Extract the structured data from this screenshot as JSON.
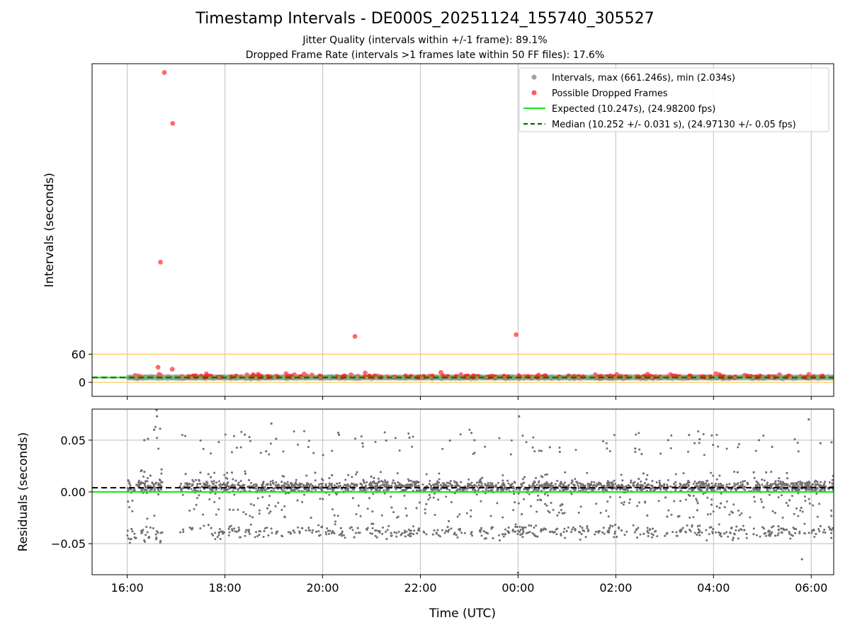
{
  "figure": {
    "title": "Timestamp Intervals - DE000S_20251124_155740_305527",
    "subtitle_1": "Jitter Quality (intervals within +/-1 frame): 89.1%",
    "subtitle_2": "Dropped Frame Rate (intervals >1 frames late within 50 FF files): 17.6%"
  },
  "chart_data": [
    {
      "type": "scatter",
      "panel": "top",
      "xlabel": "",
      "ylabel": "Intervals (seconds)",
      "x_unit": "hours (UTC) from 2025-11-24 00:00",
      "xlim": [
        15.28,
        30.46
      ],
      "ylim": [
        -30,
        680
      ],
      "yticks": [
        {
          "value": 0,
          "label": "0"
        },
        {
          "value": 60,
          "label": "60"
        }
      ],
      "grid_x": true,
      "legend_position": "top-right",
      "legend": [
        {
          "label": "Intervals, max (661.246s), min (2.034s)",
          "marker": "circle",
          "color": "#a0a0a0"
        },
        {
          "label": "Possible Dropped Frames",
          "marker": "circle",
          "color": "#ff5a5a"
        },
        {
          "label": "Expected (10.247s), (24.98200 fps)",
          "marker": "line",
          "color": "#1ee61e"
        },
        {
          "label": "Median (10.252 +/- 0.031 s), (24.97130 +/- 0.05 fps)",
          "marker": "dashed-line",
          "color": "#007000"
        }
      ],
      "intervals_series": {
        "name": "Intervals, max (661.246s), min (2.034s)",
        "x_range": [
          16.0,
          30.5
        ],
        "typical_value": 10.25,
        "color": "#808080"
      },
      "dropped_frames": {
        "name": "Possible Dropped Frames",
        "color": "#ff5a5a",
        "points": [
          [
            16.76,
            661.2
          ],
          [
            16.93,
            552.5
          ],
          [
            16.68,
            256.4
          ],
          [
            20.66,
            97.8
          ],
          [
            23.96,
            101.8
          ],
          [
            16.63,
            32.1
          ],
          [
            16.92,
            28.0
          ],
          [
            16.65,
            16.8
          ],
          [
            16.68,
            15.2
          ],
          [
            16.16,
            14.5
          ],
          [
            17.62,
            17.9
          ],
          [
            18.45,
            15.8
          ],
          [
            18.58,
            16.4
          ],
          [
            18.68,
            17.2
          ],
          [
            19.25,
            18.3
          ],
          [
            19.42,
            16.2
          ],
          [
            19.62,
            17.6
          ],
          [
            19.78,
            15.5
          ],
          [
            20.58,
            16.1
          ],
          [
            20.87,
            20.0
          ],
          [
            22.42,
            21.0
          ],
          [
            22.83,
            16.5
          ],
          [
            24.01,
            14.6
          ],
          [
            24.42,
            15.5
          ],
          [
            25.58,
            16.2
          ],
          [
            26.02,
            16.8
          ],
          [
            26.65,
            17.1
          ],
          [
            27.12,
            16.4
          ],
          [
            28.05,
            18.5
          ],
          [
            28.12,
            16.5
          ],
          [
            28.64,
            15.0
          ],
          [
            29.35,
            16.2
          ],
          [
            29.95,
            16.8
          ],
          [
            16.22,
            13.8
          ],
          [
            16.28,
            12.2
          ],
          [
            17.12,
            12.4
          ],
          [
            17.25,
            12.6
          ],
          [
            17.41,
            11.2
          ],
          [
            17.72,
            13.1
          ],
          [
            18.14,
            12.5
          ],
          [
            18.32,
            12.1
          ],
          [
            18.55,
            12.6
          ],
          [
            18.75,
            13.2
          ],
          [
            18.94,
            12.1
          ],
          [
            19.05,
            12.5
          ],
          [
            19.32,
            13.4
          ],
          [
            19.52,
            12.1
          ],
          [
            19.68,
            13.4
          ],
          [
            19.93,
            12.2
          ],
          [
            20.41,
            12.1
          ],
          [
            20.72,
            12.6
          ],
          [
            20.95,
            12.1
          ],
          [
            21.12,
            13.3
          ],
          [
            21.32,
            12.1
          ],
          [
            21.82,
            12.6
          ],
          [
            22.05,
            12.2
          ],
          [
            22.18,
            13.2
          ],
          [
            22.55,
            12.4
          ],
          [
            22.72,
            12.6
          ],
          [
            22.95,
            12.1
          ],
          [
            23.42,
            11.9
          ],
          [
            24.12,
            12.4
          ],
          [
            24.28,
            12.1
          ],
          [
            25.25,
            12.6
          ],
          [
            25.72,
            12.1
          ],
          [
            25.95,
            12.4
          ],
          [
            26.22,
            12.1
          ],
          [
            26.42,
            12.3
          ],
          [
            26.82,
            12.6
          ],
          [
            27.05,
            12.2
          ],
          [
            27.32,
            12.5
          ],
          [
            27.55,
            12.6
          ],
          [
            27.72,
            12.2
          ],
          [
            27.94,
            12.1
          ],
          [
            28.22,
            12.6
          ],
          [
            28.45,
            11.9
          ],
          [
            28.95,
            12.4
          ],
          [
            29.12,
            12.3
          ],
          [
            29.22,
            12.1
          ],
          [
            29.58,
            12.4
          ],
          [
            29.78,
            12.6
          ],
          [
            30.18,
            12.1
          ]
        ]
      },
      "expected": {
        "value": 10.247,
        "color": "#1ee61e"
      },
      "median": {
        "value": 10.252,
        "color": "#007000"
      },
      "reference_lines": [
        {
          "value": 60,
          "color": "#ffc859"
        },
        {
          "value": 0,
          "color": "#ffc859"
        }
      ]
    },
    {
      "type": "scatter",
      "panel": "bottom",
      "xlabel": "Time (UTC)",
      "ylabel": "Residuals (seconds)",
      "xlim": [
        15.28,
        30.46
      ],
      "ylim": [
        -0.08,
        0.08
      ],
      "yticks": [
        {
          "value": -0.05,
          "label": "−0.05"
        },
        {
          "value": 0.0,
          "label": "0.00"
        },
        {
          "value": 0.05,
          "label": "0.05"
        }
      ],
      "xticks": [
        {
          "value": 16,
          "label": "16:00"
        },
        {
          "value": 18,
          "label": "18:00"
        },
        {
          "value": 20,
          "label": "20:00"
        },
        {
          "value": 22,
          "label": "22:00"
        },
        {
          "value": 24,
          "label": "00:00"
        },
        {
          "value": 26,
          "label": "02:00"
        },
        {
          "value": 28,
          "label": "04:00"
        },
        {
          "value": 30,
          "label": "06:00"
        }
      ],
      "grid_x": true,
      "grid_y": true,
      "expected_line": {
        "value": 0.0,
        "color": "#1ee61e"
      },
      "median_line": {
        "value": 0.004,
        "color": "#000000"
      },
      "residuals": {
        "color": "#707070",
        "x_range": [
          16.0,
          30.5
        ],
        "gap_x": [
          16.72,
          17.08
        ],
        "main_band": [
          -0.004,
          0.012
        ],
        "lower_cluster": [
          -0.048,
          -0.028
        ],
        "highlights": [
          [
            16.6,
            0.079
          ],
          [
            16.61,
            0.073
          ],
          [
            24.0,
            -0.078
          ],
          [
            29.95,
            0.07
          ],
          [
            29.81,
            -0.065
          ],
          [
            16.35,
            0.05
          ],
          [
            16.55,
            0.06
          ],
          [
            18.95,
            0.066
          ],
          [
            24.02,
            0.073
          ],
          [
            27.5,
            0.055
          ]
        ]
      }
    }
  ]
}
